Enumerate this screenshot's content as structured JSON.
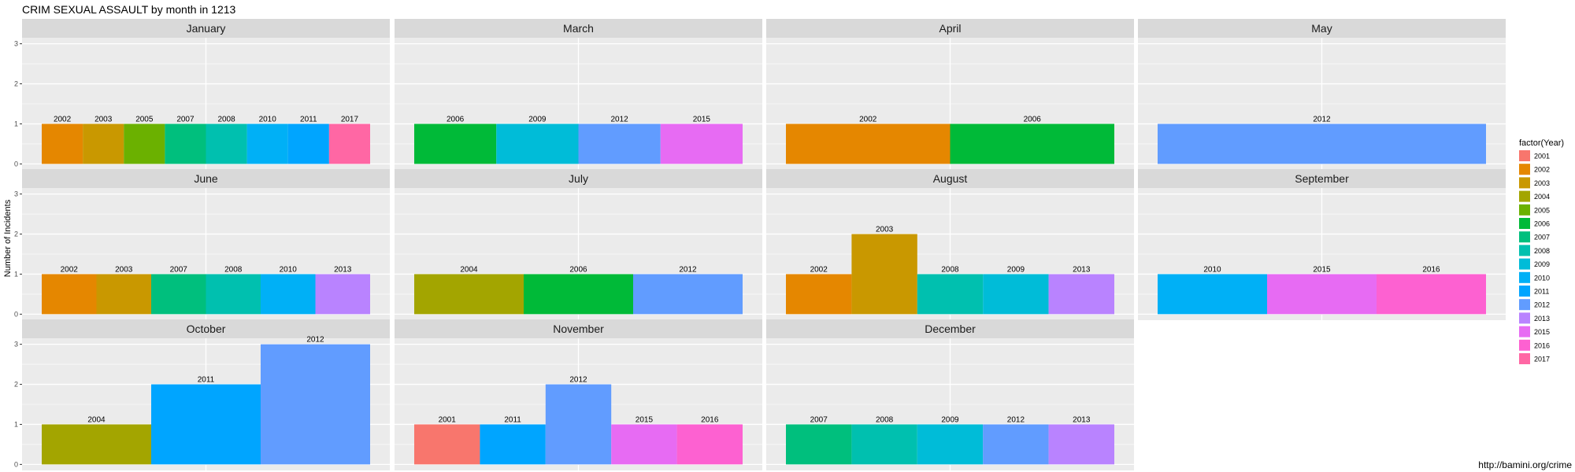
{
  "chart_data": {
    "type": "bar",
    "title": "CRIM SEXUAL ASSAULT by month in 1213",
    "ylabel": "Number of Incidents",
    "xlabel": "",
    "ylim": [
      0,
      3
    ],
    "yticks": [
      "0",
      "1",
      "2",
      "3"
    ],
    "grid": true,
    "facet_by": "month",
    "legend_title": "factor(Year)",
    "legend_position": "right",
    "legend": [
      {
        "year": "2001",
        "color": "#F8766D"
      },
      {
        "year": "2002",
        "color": "#E58700"
      },
      {
        "year": "2003",
        "color": "#C99800"
      },
      {
        "year": "2004",
        "color": "#A3A500"
      },
      {
        "year": "2005",
        "color": "#6BB100"
      },
      {
        "year": "2006",
        "color": "#00BA38"
      },
      {
        "year": "2007",
        "color": "#00BF7D"
      },
      {
        "year": "2008",
        "color": "#00C0AF"
      },
      {
        "year": "2009",
        "color": "#00BCD8"
      },
      {
        "year": "2010",
        "color": "#00B0F6"
      },
      {
        "year": "2011",
        "color": "#00A5FF"
      },
      {
        "year": "2012",
        "color": "#619CFF"
      },
      {
        "year": "2013",
        "color": "#B983FF"
      },
      {
        "year": "2015",
        "color": "#E76BF3"
      },
      {
        "year": "2016",
        "color": "#FD61D1"
      },
      {
        "year": "2017",
        "color": "#FF67A4"
      }
    ],
    "panels": [
      {
        "month": "January",
        "bars": [
          {
            "year": "2002",
            "value": 1
          },
          {
            "year": "2003",
            "value": 1
          },
          {
            "year": "2005",
            "value": 1
          },
          {
            "year": "2007",
            "value": 1
          },
          {
            "year": "2008",
            "value": 1
          },
          {
            "year": "2010",
            "value": 1
          },
          {
            "year": "2011",
            "value": 1
          },
          {
            "year": "2017",
            "value": 1
          }
        ]
      },
      {
        "month": "March",
        "bars": [
          {
            "year": "2006",
            "value": 1
          },
          {
            "year": "2009",
            "value": 1
          },
          {
            "year": "2012",
            "value": 1
          },
          {
            "year": "2015",
            "value": 1
          }
        ]
      },
      {
        "month": "April",
        "bars": [
          {
            "year": "2002",
            "value": 1
          },
          {
            "year": "2006",
            "value": 1
          }
        ]
      },
      {
        "month": "May",
        "bars": [
          {
            "year": "2012",
            "value": 1
          }
        ]
      },
      {
        "month": "June",
        "bars": [
          {
            "year": "2002",
            "value": 1
          },
          {
            "year": "2003",
            "value": 1
          },
          {
            "year": "2007",
            "value": 1
          },
          {
            "year": "2008",
            "value": 1
          },
          {
            "year": "2010",
            "value": 1
          },
          {
            "year": "2013",
            "value": 1
          }
        ]
      },
      {
        "month": "July",
        "bars": [
          {
            "year": "2004",
            "value": 1
          },
          {
            "year": "2006",
            "value": 1
          },
          {
            "year": "2012",
            "value": 1
          }
        ]
      },
      {
        "month": "August",
        "bars": [
          {
            "year": "2002",
            "value": 1
          },
          {
            "year": "2003",
            "value": 2
          },
          {
            "year": "2008",
            "value": 1
          },
          {
            "year": "2009",
            "value": 1
          },
          {
            "year": "2013",
            "value": 1
          }
        ]
      },
      {
        "month": "September",
        "bars": [
          {
            "year": "2010",
            "value": 1
          },
          {
            "year": "2015",
            "value": 1
          },
          {
            "year": "2016",
            "value": 1
          }
        ]
      },
      {
        "month": "October",
        "bars": [
          {
            "year": "2004",
            "value": 1
          },
          {
            "year": "2011",
            "value": 2
          },
          {
            "year": "2012",
            "value": 3
          }
        ]
      },
      {
        "month": "November",
        "bars": [
          {
            "year": "2001",
            "value": 1
          },
          {
            "year": "2011",
            "value": 1
          },
          {
            "year": "2012",
            "value": 2
          },
          {
            "year": "2015",
            "value": 1
          },
          {
            "year": "2016",
            "value": 1
          }
        ]
      },
      {
        "month": "December",
        "bars": [
          {
            "year": "2007",
            "value": 1
          },
          {
            "year": "2008",
            "value": 1
          },
          {
            "year": "2009",
            "value": 1
          },
          {
            "year": "2012",
            "value": 1
          },
          {
            "year": "2013",
            "value": 1
          }
        ]
      }
    ]
  },
  "footer": {
    "source": "http://bamini.org/crime"
  }
}
